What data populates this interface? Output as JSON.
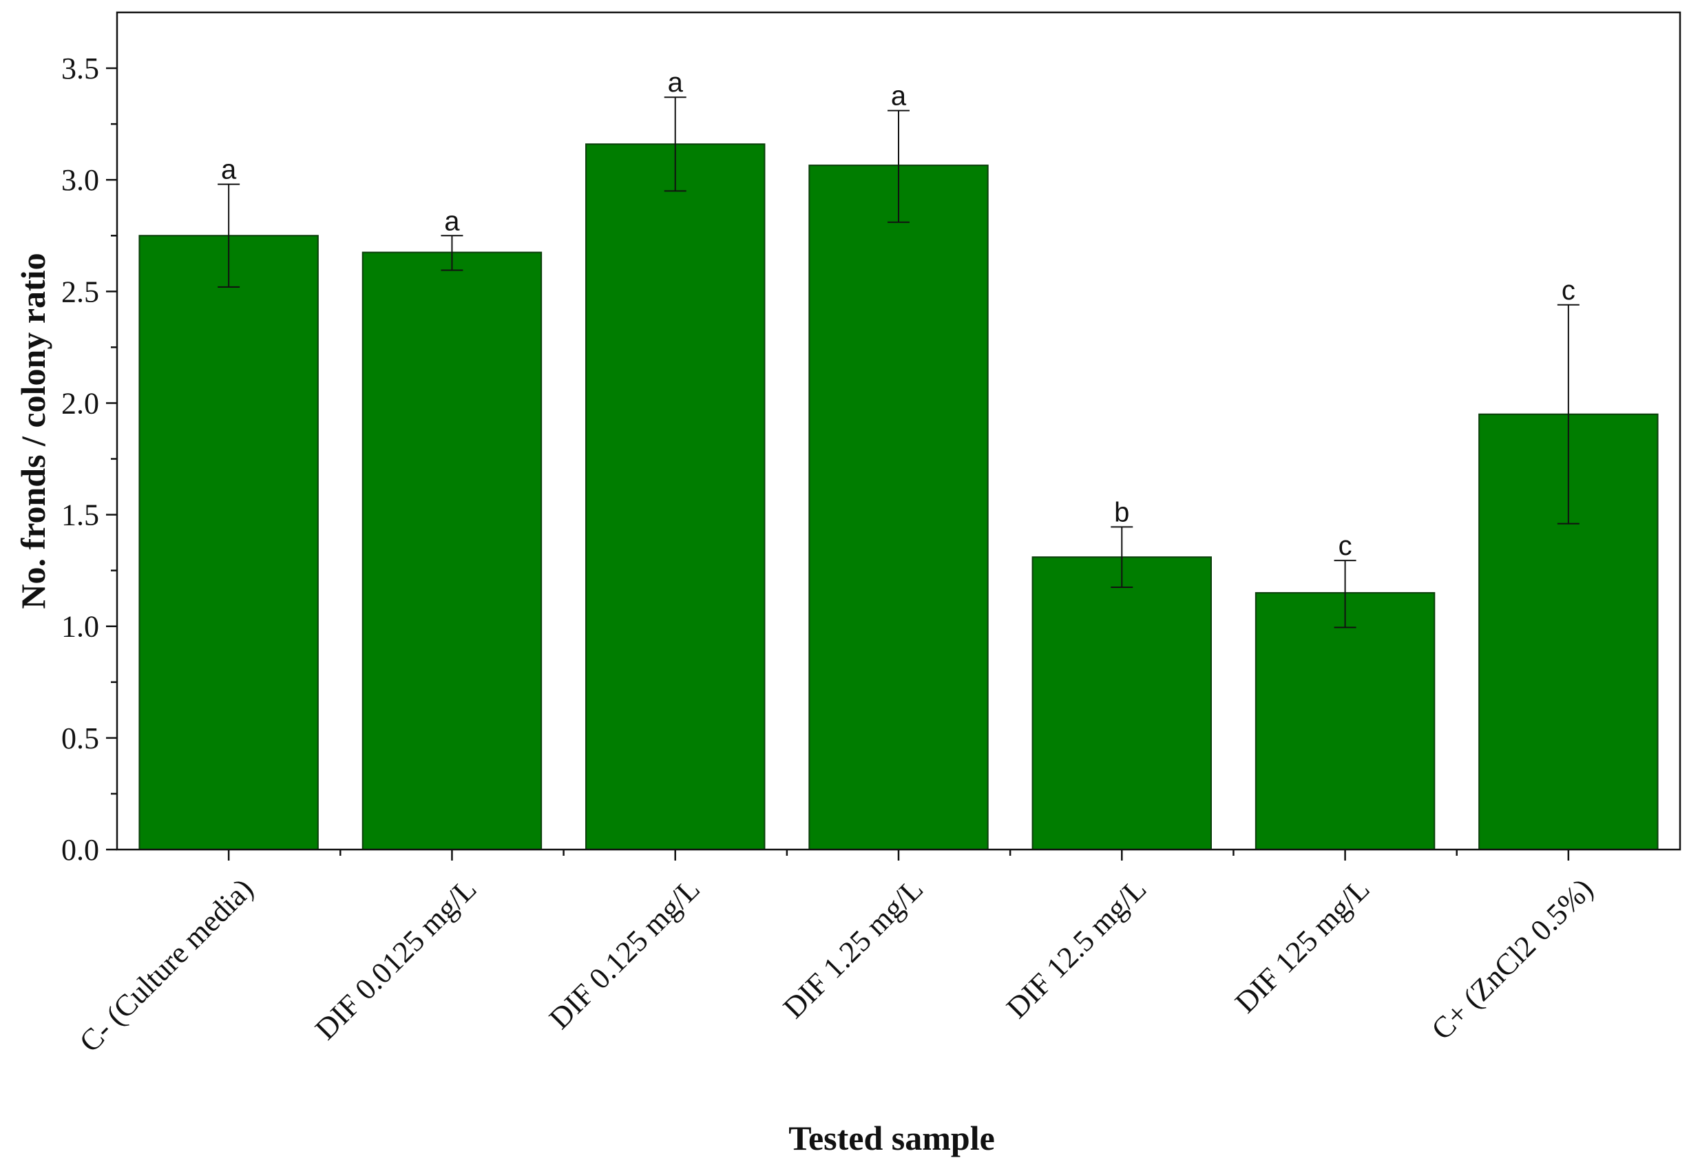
{
  "chart_data": {
    "type": "bar",
    "title": "",
    "xlabel": "Tested sample",
    "ylabel": "No. fronds / colony ratio",
    "ylim": [
      0,
      3.75
    ],
    "yticks": [
      "0.0",
      "0.5",
      "1.0",
      "1.5",
      "2.0",
      "2.5",
      "3.0",
      "3.5"
    ],
    "categories": [
      "C- (Culture media)",
      "DIF 0.0125 mg/L",
      "DIF 0.125 mg/L",
      "DIF 1.25 mg/L",
      "DIF 12.5 mg/L",
      "DIF 125 mg/L",
      "C+ (ZnCl2 0.5%)"
    ],
    "values": [
      2.75,
      2.675,
      3.16,
      3.065,
      1.31,
      1.15,
      1.95
    ],
    "error_upper": [
      2.98,
      2.75,
      3.37,
      3.31,
      1.445,
      1.295,
      2.44
    ],
    "error_lower": [
      2.52,
      2.595,
      2.95,
      2.81,
      1.175,
      0.995,
      1.46
    ],
    "significance_letters": [
      "a",
      "a",
      "a",
      "a",
      "b",
      "c",
      "c"
    ],
    "bar_color": "#007d00",
    "grid": false,
    "legend": "none"
  }
}
